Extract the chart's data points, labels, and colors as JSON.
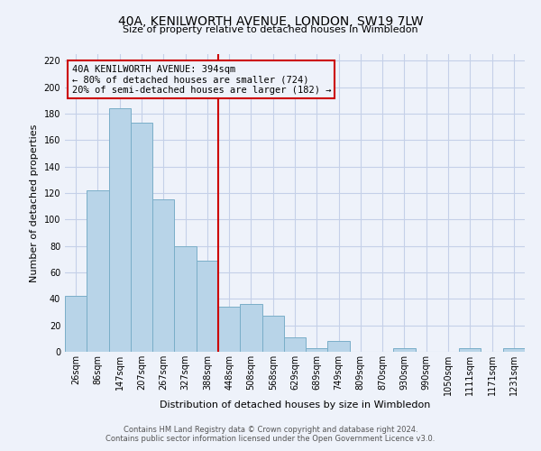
{
  "title": "40A, KENILWORTH AVENUE, LONDON, SW19 7LW",
  "subtitle": "Size of property relative to detached houses in Wimbledon",
  "xlabel": "Distribution of detached houses by size in Wimbledon",
  "ylabel": "Number of detached properties",
  "categories": [
    "26sqm",
    "86sqm",
    "147sqm",
    "207sqm",
    "267sqm",
    "327sqm",
    "388sqm",
    "448sqm",
    "508sqm",
    "568sqm",
    "629sqm",
    "689sqm",
    "749sqm",
    "809sqm",
    "870sqm",
    "930sqm",
    "990sqm",
    "1050sqm",
    "1111sqm",
    "1171sqm",
    "1231sqm"
  ],
  "values": [
    42,
    122,
    184,
    173,
    115,
    80,
    69,
    34,
    36,
    27,
    11,
    3,
    8,
    0,
    0,
    3,
    0,
    0,
    3,
    0,
    3
  ],
  "bar_color": "#b8d4e8",
  "bar_edge_color": "#7aaec8",
  "vline_color": "#cc0000",
  "vline_pos": 6.5,
  "annotation_text": "40A KENILWORTH AVENUE: 394sqm\n← 80% of detached houses are smaller (724)\n20% of semi-detached houses are larger (182) →",
  "annotation_box_color": "#cc0000",
  "ylim": [
    0,
    225
  ],
  "yticks": [
    0,
    20,
    40,
    60,
    80,
    100,
    120,
    140,
    160,
    180,
    200,
    220
  ],
  "footer1": "Contains HM Land Registry data © Crown copyright and database right 2024.",
  "footer2": "Contains public sector information licensed under the Open Government Licence v3.0.",
  "bg_color": "#eef2fa",
  "grid_color": "#c5d0e8",
  "title_fontsize": 10,
  "subtitle_fontsize": 8,
  "ylabel_fontsize": 8,
  "xlabel_fontsize": 8,
  "tick_fontsize": 7,
  "annotation_fontsize": 7.5,
  "footer_fontsize": 6
}
